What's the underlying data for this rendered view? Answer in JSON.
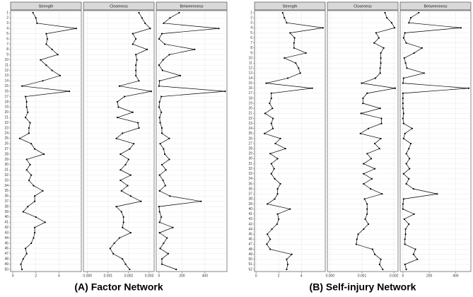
{
  "chart_data": [
    {
      "type": "line",
      "title": "(A) Factor Network",
      "grid": true,
      "color": "#000000",
      "categories": [
        1,
        2,
        3,
        4,
        5,
        6,
        7,
        8,
        9,
        10,
        11,
        12,
        13,
        14,
        15,
        16,
        17,
        18,
        19,
        20,
        21,
        22,
        23,
        24,
        25,
        26,
        27,
        28,
        29,
        30,
        31,
        32,
        33,
        34,
        35,
        36,
        37,
        38,
        39,
        40,
        41,
        42,
        43,
        44,
        45,
        46,
        47,
        48,
        49,
        50
      ],
      "facets": [
        {
          "name": "Strength",
          "xlim": [
            -0.19,
            5.94
          ],
          "xticks": [
            0,
            2,
            4
          ],
          "values": [
            1.75,
            2,
            2.1,
            5.5,
            2.9,
            3,
            2.9,
            3.4,
            3.9,
            2.4,
            2.9,
            3.4,
            4.1,
            2.6,
            0.8,
            4.9,
            1.1,
            1.2,
            1.2,
            1.3,
            1.1,
            1.5,
            1.4,
            1.4,
            0.6,
            1.6,
            1.9,
            2.7,
            1.2,
            1.5,
            1.2,
            1.6,
            1.4,
            1.8,
            2.6,
            1.9,
            1.9,
            1.3,
            0.9,
            2,
            2.8,
            1.9,
            1.9,
            1.8,
            1.6,
            1.1,
            1.2,
            0.9,
            0.7,
            0.8
          ]
        },
        {
          "name": "Closeness",
          "xlim": [
            -0.0002,
            0.00324
          ],
          "xticks": [
            {
              "value": 0,
              "label": "0.000"
            },
            0.001,
            0.002,
            0.003
          ],
          "values": [
            0.0025,
            0.00265,
            0.0028,
            0.00305,
            0.0022,
            0.00235,
            0.0022,
            0.0029,
            0.00235,
            0.0024,
            0.00235,
            0.00235,
            0.00235,
            0.0025,
            0.00155,
            0.0031,
            0.0018,
            0.00145,
            0.0015,
            0.0022,
            0.00145,
            0.00245,
            0.0025,
            0.0017,
            0.0014,
            0.00225,
            0.00205,
            0.0016,
            0.002,
            0.00185,
            0.0016,
            0.0021,
            0.0016,
            0.00195,
            0.00165,
            0.0021,
            0.0026,
            0.0014,
            0.00165,
            0.00175,
            0.00175,
            0.0017,
            0.0021,
            0.00155,
            0.0013,
            0.0011,
            0.00125,
            0.0017,
            0.00185,
            0.00205
          ]
        },
        {
          "name": "Betweenness",
          "xlim": [
            -24,
            591
          ],
          "xticks": [
            0,
            200,
            400
          ],
          "values": [
            175,
            95,
            40,
            520,
            25,
            0,
            50,
            310,
            90,
            35,
            0,
            30,
            185,
            5,
            0,
            575,
            20,
            5,
            0,
            20,
            5,
            10,
            25,
            25,
            90,
            10,
            40,
            50,
            90,
            25,
            60,
            5,
            35,
            55,
            5,
            95,
            365,
            0,
            5,
            20,
            5,
            120,
            5,
            70,
            40,
            10,
            80,
            25,
            25,
            150
          ]
        }
      ]
    },
    {
      "type": "line",
      "title": "(B) Self-injury Network",
      "grid": true,
      "color": "#000000",
      "categories": [
        1,
        2,
        3,
        4,
        5,
        6,
        7,
        8,
        9,
        10,
        11,
        12,
        13,
        14,
        15,
        16,
        17,
        18,
        19,
        20,
        21,
        22,
        23,
        24,
        25,
        26,
        27,
        28,
        29,
        30,
        31,
        32,
        33,
        34,
        35,
        36,
        37,
        38,
        39,
        40,
        41,
        42,
        43,
        44,
        45,
        46,
        47,
        48,
        49,
        50,
        51,
        52
      ],
      "facets": [
        {
          "name": "Strength",
          "xlim": [
            -0.13,
            6.1
          ],
          "xticks": [
            0,
            2,
            4
          ],
          "values": [
            2.35,
            2.5,
            2.7,
            5.9,
            3,
            3.4,
            3.35,
            3.35,
            4.4,
            2.5,
            3.5,
            3.75,
            3.9,
            2.8,
            0.9,
            4.95,
            1.35,
            1.35,
            1.2,
            1.45,
            0.8,
            1.5,
            1.35,
            1.5,
            0.75,
            2.15,
            1.7,
            2.6,
            1.25,
            1.9,
            1.35,
            1.6,
            1.35,
            1.65,
            2.15,
            1.9,
            1.9,
            1.65,
            1,
            3,
            1.9,
            2,
            1.85,
            1.4,
            1,
            1.25,
            0.95,
            1.25,
            3.15,
            2.7,
            2.8,
            2.7
          ]
        },
        {
          "name": "Closeness",
          "xlim": [
            -8.6e-05,
            0.00213
          ],
          "xticks": [
            {
              "value": 0,
              "label": "0.000"
            },
            0.001,
            0.002
          ],
          "values": [
            0.00172,
            0.00178,
            0.00193,
            0.00202,
            0.00144,
            0.00153,
            0.00138,
            0.00168,
            0.00159,
            0.00159,
            0.00159,
            0.00157,
            0.00157,
            0.00142,
            0.00099,
            0.00204,
            0.00116,
            0.00103,
            0.00103,
            0.00157,
            0.00097,
            0.00161,
            0.00161,
            0.0012,
            0.00095,
            0.00159,
            0.0014,
            0.00155,
            0.00116,
            0.00129,
            0.00105,
            0.0014,
            0.00105,
            0.00131,
            0.00105,
            0.00127,
            0.00163,
            0.00108,
            0.00116,
            0.00116,
            0.00116,
            0.0011,
            0.0012,
            0.00105,
            0.00088,
            0.00084,
            0.00082,
            0.00133,
            0.0014,
            0.00159,
            0.00155,
            0.00165
          ]
        },
        {
          "name": "Betweenness",
          "xlim": [
            -21,
            516
          ],
          "xticks": [
            0,
            200,
            400
          ],
          "values": [
            120,
            60,
            45,
            440,
            15,
            5,
            25,
            145,
            85,
            10,
            20,
            30,
            160,
            5,
            0,
            500,
            0,
            0,
            0,
            0,
            5,
            0,
            5,
            70,
            15,
            5,
            60,
            45,
            25,
            50,
            25,
            50,
            5,
            45,
            25,
            80,
            260,
            5,
            0,
            0,
            85,
            10,
            45,
            20,
            20,
            15,
            15,
            95,
            80,
            110,
            15,
            25
          ]
        }
      ]
    }
  ]
}
